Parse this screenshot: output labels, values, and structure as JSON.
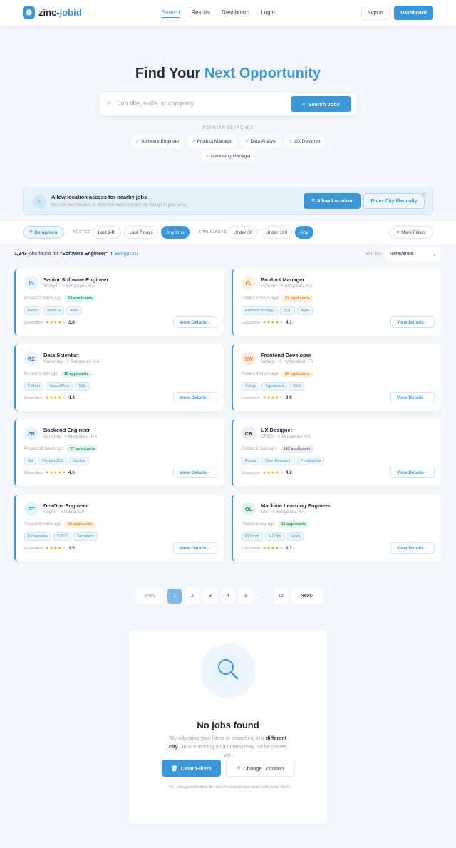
{
  "nav": {
    "logo_a": "zinc-",
    "logo_b": "jobid",
    "links": [
      "Search",
      "Results",
      "Dashboard",
      "Login"
    ],
    "active": "Search",
    "sign_in": "Sign In",
    "dashboard": "Dashboard"
  },
  "hero": {
    "title_a": "Find Your ",
    "title_b": "Next Opportunity",
    "search_placeholder": "Job title, skills, or company...",
    "search_button": "Search Jobs",
    "popular_label": "POPULAR SEARCHES",
    "popular": [
      "Software Engineer",
      "Product Manager",
      "Data Analyst",
      "UX Designer",
      "Marketing Manager"
    ]
  },
  "location_banner": {
    "title": "Allow location access for nearby jobs",
    "subtitle": "We use your location to show the most relevant job listings in your area.",
    "allow": "Allow Location",
    "manual": "Enter City Manually",
    "close": "×"
  },
  "filters": {
    "city": "Bengaluru",
    "posted_label": "POSTED",
    "posted": [
      "Last 24h",
      "Last 7 days",
      "Any time"
    ],
    "posted_selected": "Any time",
    "applicants_label": "APPLICANTS",
    "applicants": [
      "Under 30",
      "Under 100",
      "Any"
    ],
    "applicants_selected": "Any",
    "more": "More Filters"
  },
  "results": {
    "count": "1,243",
    "text_a": " jobs found for ",
    "query": "\"Software Engineer\"",
    "text_b": " in ",
    "city": "Bengaluru",
    "sort_label": "Sort by:",
    "sort_value": "Relevance"
  },
  "colors": {
    "accent": "#3b97d8",
    "star": "#f59e0b"
  },
  "jobs": [
    {
      "initials": "IN",
      "title": "Senior Software Engineer",
      "company": "Infosys",
      "location": "Bengaluru, KA",
      "posted": "Posted 2 hours ago",
      "applicants": "24 applicants",
      "badge": "green",
      "avatar": "blue",
      "tags": [
        "React",
        "Node.js",
        "AWS"
      ],
      "rating_label": "Glassdoor",
      "rating": 3.8,
      "cta": "View Details"
    },
    {
      "initials": "FL",
      "title": "Product Manager",
      "company": "Flipkart",
      "location": "Bengaluru, KA",
      "posted": "Posted 5 hours ago",
      "applicants": "67 applicants",
      "badge": "orange",
      "avatar": "amber",
      "tags": [
        "Product Strategy",
        "SQL",
        "Agile"
      ],
      "rating_label": "Glassdoor",
      "rating": 4.1,
      "cta": "View Details"
    },
    {
      "initials": "RZ",
      "title": "Data Scientist",
      "company": "Razorpay",
      "location": "Bengaluru, KA",
      "posted": "Posted 1 day ago",
      "applicants": "18 applicants",
      "badge": "green",
      "avatar": "blue",
      "tags": [
        "Python",
        "TensorFlow",
        "SQL"
      ],
      "rating_label": "Glassdoor",
      "rating": 4.4,
      "cta": "View Details"
    },
    {
      "initials": "SW",
      "title": "Frontend Developer",
      "company": "Swiggy",
      "location": "Hyderabad, TS",
      "posted": "Posted 3 hours ago",
      "applicants": "88 applicants",
      "badge": "orange",
      "avatar": "orange",
      "tags": [
        "Vue.js",
        "TypeScript",
        "CSS"
      ],
      "rating_label": "Glassdoor",
      "rating": 3.9,
      "cta": "View Details"
    },
    {
      "initials": "ZR",
      "title": "Backend Engineer",
      "company": "Zerodha",
      "location": "Bengaluru, KA",
      "posted": "Posted 12 hours ago",
      "applicants": "27 applicants",
      "badge": "green",
      "avatar": "blue",
      "tags": [
        "Go",
        "PostgreSQL",
        "Docker"
      ],
      "rating_label": "Glassdoor",
      "rating": 4.6,
      "cta": "View Details"
    },
    {
      "initials": "CR",
      "title": "UX Designer",
      "company": "CRED",
      "location": "Bengaluru, KA",
      "posted": "Posted 2 days ago",
      "applicants": "142 applicants",
      "badge": "gray",
      "avatar": "gray",
      "tags": [
        "Figma",
        "User Research",
        "Prototyping"
      ],
      "rating_label": "Glassdoor",
      "rating": 4.2,
      "cta": "View Details"
    },
    {
      "initials": "PT",
      "title": "DevOps Engineer",
      "company": "Paytm",
      "location": "Noida, UP",
      "posted": "Posted 6 hours ago",
      "applicants": "45 applicants",
      "badge": "orange",
      "avatar": "cyan",
      "tags": [
        "Kubernetes",
        "CI/CD",
        "Terraform"
      ],
      "rating_label": "Glassdoor",
      "rating": 3.5,
      "cta": "View Details"
    },
    {
      "initials": "OL",
      "title": "Machine Learning Engineer",
      "company": "Ola",
      "location": "Bengaluru, KA",
      "posted": "Posted 1 day ago",
      "applicants": "11 applicants",
      "badge": "green",
      "avatar": "green",
      "tags": [
        "PyTorch",
        "MLOps",
        "Spark"
      ],
      "rating_label": "Glassdoor",
      "rating": 3.7,
      "cta": "View Details"
    }
  ],
  "pagination": {
    "prev": "Prev",
    "pages": [
      "1",
      "2",
      "3",
      "4",
      "5",
      "…",
      "12"
    ],
    "current": "1",
    "next": "Next"
  },
  "empty": {
    "title": "No jobs found",
    "desc_a": "Try adjusting your filters or searching in a ",
    "desc_b": "different city",
    "desc_c": ". Jobs matching your criteria may not be posted yet.",
    "clear": "Clear Filters",
    "change": "Change Location",
    "tip": "Tip: Jobs posted within the last 24 hours match faster with fewer filters"
  }
}
